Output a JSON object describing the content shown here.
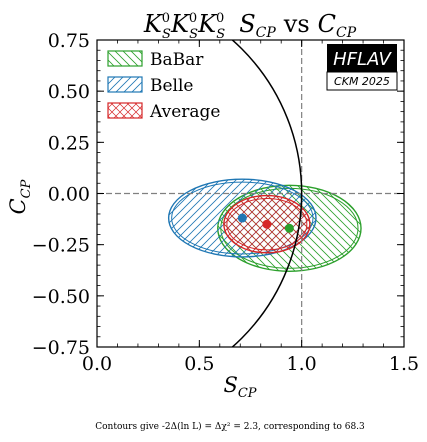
{
  "chart_data": {
    "type": "scatter",
    "title": {
      "part1": "K",
      "sup1": "0",
      "sub1": "S",
      "part2": "K",
      "sup2": "0",
      "sub2": "S",
      "part3": "K",
      "sup3": "0",
      "sub3": "S",
      "s_main": "S",
      "s_sub": "CP",
      "vs": "vs",
      "c_main": "C",
      "c_sub": "CP"
    },
    "xlabel": {
      "main": "S",
      "sub": "CP"
    },
    "ylabel": {
      "main": "C",
      "sub": "CP"
    },
    "xlim": [
      0.0,
      1.5
    ],
    "ylim": [
      -0.75,
      0.75
    ],
    "x_ticks": [
      0.0,
      0.5,
      1.0,
      1.5
    ],
    "x_tick_labels": [
      "0.0",
      "0.5",
      "1.0",
      "1.5"
    ],
    "y_ticks": [
      0.75,
      0.5,
      0.25,
      0.0,
      -0.25,
      -0.5,
      -0.75
    ],
    "y_tick_labels": [
      "0.75",
      "0.50",
      "0.25",
      "0.00",
      "−0.25",
      "−0.50",
      "−0.75"
    ],
    "reference_lines": {
      "x": 1.0,
      "y": 0.0
    },
    "physical_boundary": {
      "description": "S² + C² = 1",
      "radius": 1.0
    },
    "series": [
      {
        "name": "BaBar",
        "color": "#2ca02c",
        "hatch": "backslash",
        "center": [
          0.94,
          -0.17
        ],
        "radii": [
          0.35,
          0.21
        ]
      },
      {
        "name": "Belle",
        "color": "#1f77b4",
        "hatch": "slash",
        "center": [
          0.71,
          -0.12
        ],
        "radii": [
          0.36,
          0.19
        ]
      },
      {
        "name": "Average",
        "color": "#d62728",
        "hatch": "cross",
        "center": [
          0.83,
          -0.15
        ],
        "radii": [
          0.21,
          0.14
        ]
      }
    ],
    "legend_position": "top-left",
    "badge": {
      "title": "HFLAV",
      "subtitle": "CKM 2025"
    },
    "footnote": "Contours give -2Δ(ln L) = Δχ² = 2.3, corresponding to 68.3"
  }
}
